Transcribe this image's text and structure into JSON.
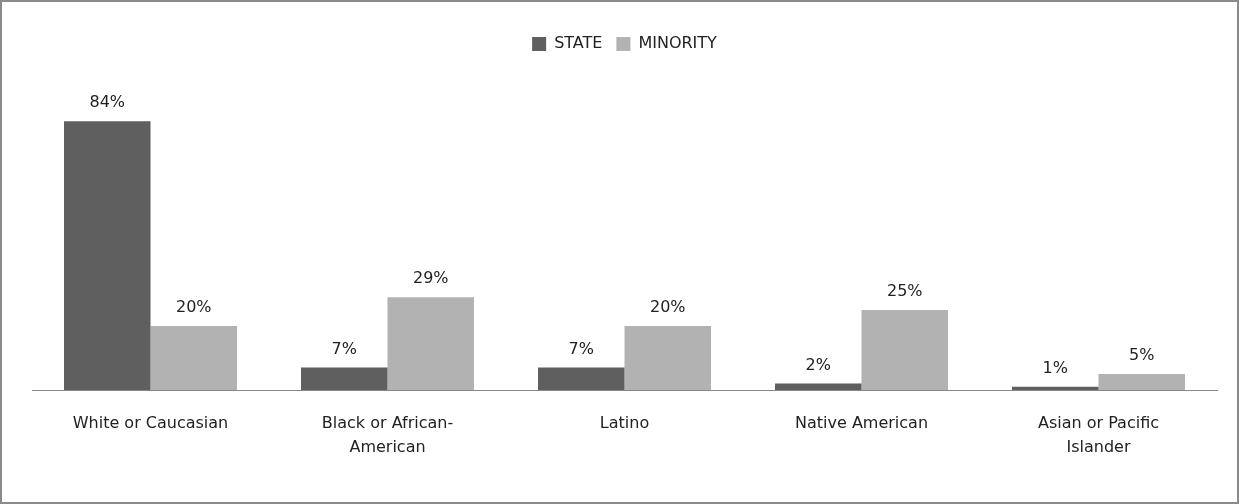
{
  "chart_data": {
    "type": "bar",
    "categories": [
      "White or Caucasian",
      "Black or African-American",
      "Latino",
      "Native American",
      "Asian or Pacific Islander"
    ],
    "series": [
      {
        "name": "STATE",
        "color": "#5f5f5f",
        "values": [
          84,
          7,
          7,
          2,
          1
        ],
        "value_labels": [
          "84%",
          "7%",
          "7%",
          "2%",
          "1%"
        ]
      },
      {
        "name": "MINORITY",
        "color": "#b2b2b2",
        "values": [
          20,
          29,
          20,
          25,
          5
        ],
        "value_labels": [
          "20%",
          "29%",
          "20%",
          "25%",
          "5%"
        ]
      }
    ],
    "legend": "top"
  }
}
